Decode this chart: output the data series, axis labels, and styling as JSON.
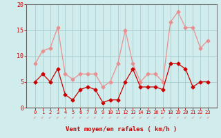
{
  "x": [
    0,
    1,
    2,
    3,
    4,
    5,
    6,
    7,
    8,
    9,
    10,
    11,
    12,
    13,
    14,
    15,
    16,
    17,
    18,
    19,
    20,
    21,
    22,
    23
  ],
  "vent_moyen": [
    5,
    6.5,
    5,
    7.5,
    2.5,
    1.5,
    3.5,
    4,
    3.5,
    1,
    1.5,
    1.5,
    5,
    7.5,
    4,
    4,
    4,
    3.5,
    8.5,
    8.5,
    7.5,
    4,
    5,
    5
  ],
  "vent_rafales": [
    8.5,
    11,
    11.5,
    15.5,
    6.5,
    5.5,
    6.5,
    6.5,
    6.5,
    4,
    5,
    8.5,
    15,
    8.5,
    5,
    6.5,
    6.5,
    5,
    16.5,
    18.5,
    15.5,
    15.5,
    11.5,
    13
  ],
  "color_moyen": "#cc0000",
  "color_rafales": "#e89090",
  "bg_color": "#d0ecec",
  "grid_color": "#a8cccc",
  "xlabel": "Vent moyen/en rafales ( km/h )",
  "ylim": [
    0,
    20
  ],
  "yticks": [
    0,
    5,
    10,
    15,
    20
  ],
  "xticks": [
    0,
    1,
    2,
    3,
    4,
    5,
    6,
    7,
    8,
    9,
    10,
    11,
    12,
    13,
    14,
    15,
    16,
    17,
    18,
    19,
    20,
    21,
    22,
    23
  ],
  "axis_label_color": "#cc0000",
  "tick_color": "#cc0000",
  "markersize": 2.5,
  "linewidth": 0.9
}
